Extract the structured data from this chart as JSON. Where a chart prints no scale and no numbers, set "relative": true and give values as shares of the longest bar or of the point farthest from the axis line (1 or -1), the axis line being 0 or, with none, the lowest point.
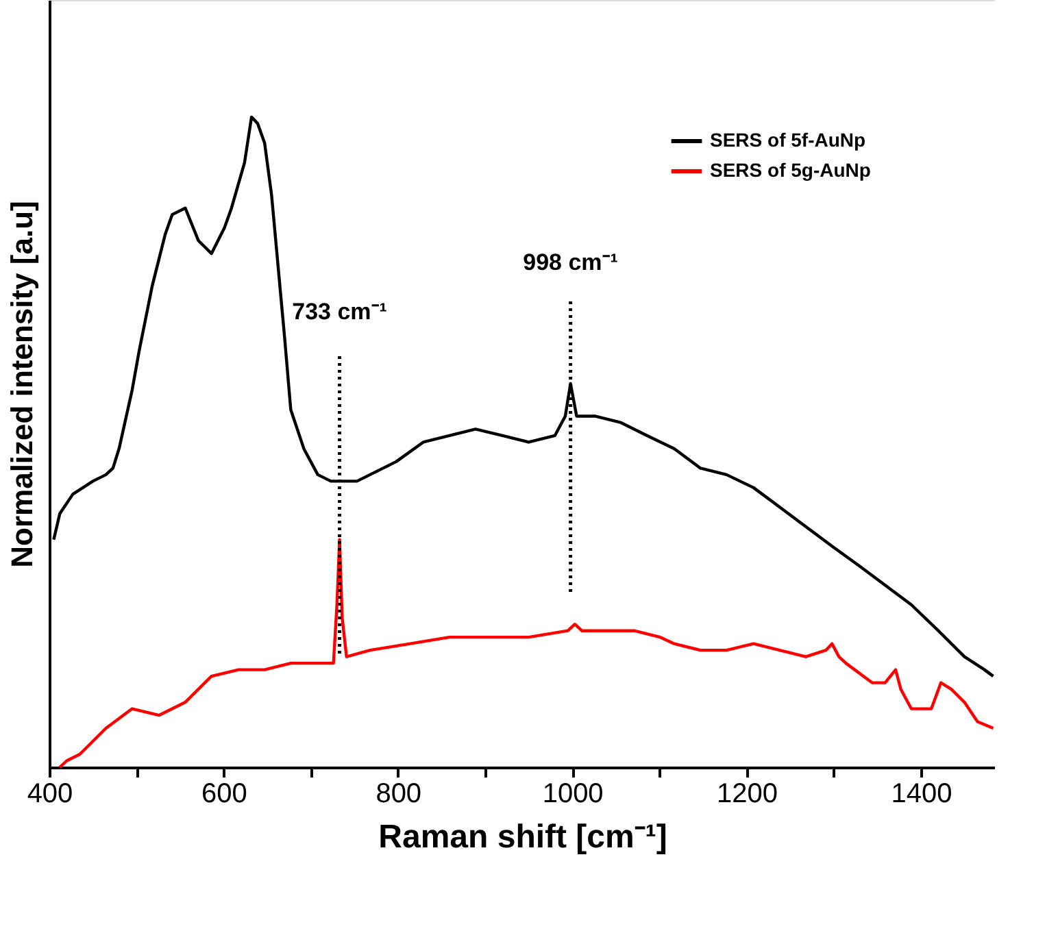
{
  "chart_data": {
    "type": "line",
    "relative": true,
    "xlabel": "Raman shift [cm⁻¹]",
    "ylabel": "Normalized intensity [a.u]",
    "xlim": [
      400,
      1485
    ],
    "xticks": [
      400,
      {
        "value": 500,
        "label": null
      },
      600,
      {
        "value": 700,
        "label": null
      },
      800,
      {
        "value": 900,
        "label": null
      },
      1000,
      {
        "value": 1100,
        "label": null
      },
      1200,
      {
        "value": 1300,
        "label": null
      },
      1400
    ],
    "legend": "top right",
    "grid": false,
    "marker": "none",
    "line_style": "solid",
    "ref_lines": [
      {
        "axis": "x",
        "value": 733,
        "label": "733 cm⁻¹",
        "line_style": "dotted",
        "color": "#000000"
      },
      {
        "axis": "x",
        "value": 998,
        "label": "998 cm⁻¹",
        "line_style": "dotted",
        "color": "#000000"
      }
    ],
    "series": [
      {
        "name": "SERS of 5f-AuNp",
        "color": "#000000",
        "x": [
          405,
          412,
          427,
          450,
          465,
          473,
          480,
          495,
          503,
          518,
          533,
          541,
          556,
          571,
          586,
          601,
          609,
          624,
          632,
          639,
          647,
          655,
          670,
          677,
          692,
          708,
          723,
          753,
          768,
          798,
          829,
          859,
          889,
          920,
          950,
          980,
          992,
          998,
          1005,
          1026,
          1056,
          1086,
          1117,
          1147,
          1177,
          1208,
          1238,
          1268,
          1298,
          1329,
          1359,
          1389,
          1420,
          1450,
          1473,
          1483
        ],
        "values": [
          0.35,
          0.39,
          0.42,
          0.44,
          0.45,
          0.46,
          0.49,
          0.58,
          0.64,
          0.74,
          0.82,
          0.85,
          0.86,
          0.81,
          0.79,
          0.83,
          0.86,
          0.93,
          1,
          0.99,
          0.96,
          0.88,
          0.66,
          0.55,
          0.49,
          0.45,
          0.44,
          0.44,
          0.45,
          0.47,
          0.5,
          0.51,
          0.52,
          0.51,
          0.5,
          0.51,
          0.54,
          0.59,
          0.54,
          0.54,
          0.53,
          0.51,
          0.49,
          0.46,
          0.45,
          0.43,
          0.4,
          0.37,
          0.34,
          0.31,
          0.28,
          0.25,
          0.21,
          0.17,
          0.15,
          0.14
        ]
      },
      {
        "name": "SERS of 5g-AuNp",
        "color": "#ff0000",
        "x": [
          412,
          420,
          435,
          465,
          495,
          526,
          556,
          586,
          617,
          647,
          677,
          708,
          726,
          730,
          733,
          736,
          741,
          768,
          814,
          859,
          905,
          950,
          995,
          1003,
          1011,
          1041,
          1071,
          1101,
          1117,
          1147,
          1177,
          1208,
          1238,
          1268,
          1291,
          1298,
          1306,
          1314,
          1344,
          1359,
          1371,
          1377,
          1389,
          1412,
          1423,
          1435,
          1450,
          1465,
          1483
        ],
        "values": [
          0,
          0.01,
          0.02,
          0.06,
          0.09,
          0.08,
          0.1,
          0.14,
          0.15,
          0.15,
          0.16,
          0.16,
          0.16,
          0.25,
          0.35,
          0.23,
          0.17,
          0.18,
          0.19,
          0.2,
          0.2,
          0.2,
          0.21,
          0.22,
          0.21,
          0.21,
          0.21,
          0.2,
          0.19,
          0.18,
          0.18,
          0.19,
          0.18,
          0.17,
          0.18,
          0.19,
          0.17,
          0.16,
          0.13,
          0.13,
          0.15,
          0.12,
          0.09,
          0.09,
          0.13,
          0.12,
          0.1,
          0.07,
          0.06
        ]
      }
    ]
  }
}
